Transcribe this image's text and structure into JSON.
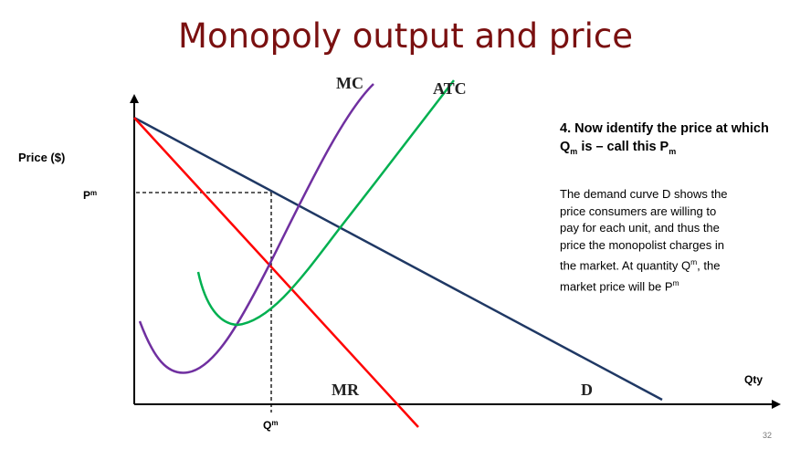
{
  "slide": {
    "title": "Monopoly output and price",
    "page_number": "32"
  },
  "diagram": {
    "y_axis_label": "Price ($)",
    "x_axis_label": "Qty",
    "price_marker": {
      "base": "P",
      "sup": "m"
    },
    "quantity_marker": {
      "base": "Q",
      "sup": "m"
    },
    "curves": {
      "mc": {
        "label": "MC",
        "color": "#7030a0"
      },
      "atc": {
        "label": "ATC",
        "color": "#00b050"
      },
      "demand": {
        "label": "D",
        "color": "#1f3864"
      },
      "mr": {
        "label": "MR",
        "color": "#ff0000"
      }
    },
    "guide_color": "#000000"
  },
  "side_text": {
    "step": {
      "part1": "4. Now identify the price at which Q",
      "sub1": "m",
      "part2": " is – call this P",
      "sub2": "m"
    },
    "explanation": {
      "part1": "The demand curve D shows the price consumers are willing to pay for each unit, and thus the price the monopolist charges in the market. At quantity Q",
      "sup1": "m",
      "part2": ", the market price will be P",
      "sup2": "m"
    }
  }
}
